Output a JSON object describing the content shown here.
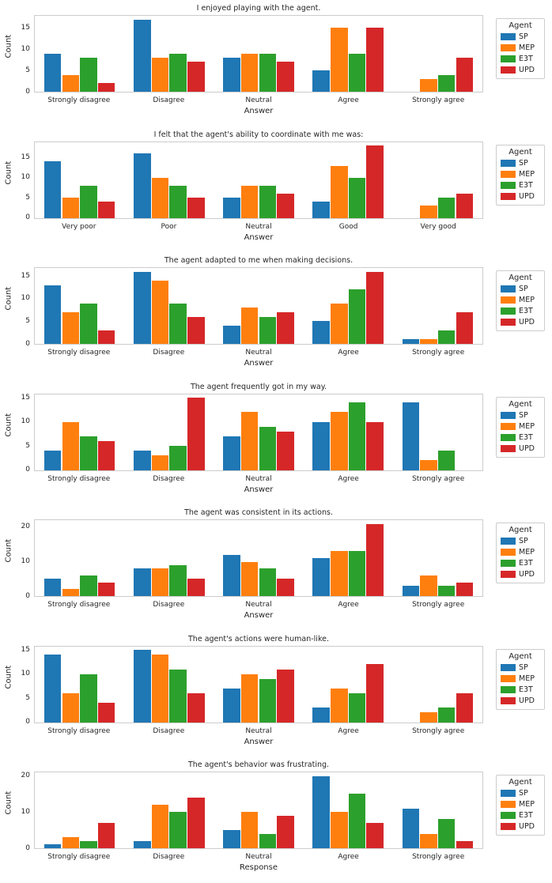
{
  "legend": {
    "title": "Agent",
    "entries": [
      {
        "label": "SP",
        "color": "#1f77b4"
      },
      {
        "label": "MEP",
        "color": "#ff7f0e"
      },
      {
        "label": "E3T",
        "color": "#2ca02c"
      },
      {
        "label": "UPD",
        "color": "#d62728"
      }
    ]
  },
  "chart_data": [
    {
      "type": "bar",
      "title": "I enjoyed playing with the agent.",
      "xlabel": "Answer",
      "ylabel": "Count",
      "categories": [
        "Strongly disagree",
        "Disagree",
        "Neutral",
        "Agree",
        "Strongly agree"
      ],
      "series": [
        {
          "name": "SP",
          "color": "#1f77b4",
          "values": [
            9,
            17,
            8,
            5,
            0
          ]
        },
        {
          "name": "MEP",
          "color": "#ff7f0e",
          "values": [
            4,
            8,
            9,
            15,
            3
          ]
        },
        {
          "name": "E3T",
          "color": "#2ca02c",
          "values": [
            8,
            9,
            9,
            9,
            4
          ]
        },
        {
          "name": "UPD",
          "color": "#d62728",
          "values": [
            2,
            7,
            7,
            15,
            8
          ]
        }
      ],
      "yticks": [
        0,
        5,
        10,
        15
      ],
      "ylim": [
        0,
        17.85
      ],
      "legend_position": "right",
      "grid": false
    },
    {
      "type": "bar",
      "title": "I felt that the agent's ability to coordinate with me was:",
      "xlabel": "Answer",
      "ylabel": "Count",
      "categories": [
        "Very poor",
        "Poor",
        "Neutral",
        "Good",
        "Very good"
      ],
      "series": [
        {
          "name": "SP",
          "color": "#1f77b4",
          "values": [
            14,
            16,
            5,
            4,
            0
          ]
        },
        {
          "name": "MEP",
          "color": "#ff7f0e",
          "values": [
            5,
            10,
            8,
            13,
            3
          ]
        },
        {
          "name": "E3T",
          "color": "#2ca02c",
          "values": [
            8,
            8,
            8,
            10,
            5
          ]
        },
        {
          "name": "UPD",
          "color": "#d62728",
          "values": [
            4,
            5,
            6,
            18,
            6
          ]
        }
      ],
      "yticks": [
        0,
        5,
        10,
        15
      ],
      "ylim": [
        0,
        18.9
      ],
      "legend_position": "right",
      "grid": false
    },
    {
      "type": "bar",
      "title": "The agent adapted to me when making decisions.",
      "xlabel": "Answer",
      "ylabel": "Count",
      "categories": [
        "Strongly disagree",
        "Disagree",
        "Neutral",
        "Agree",
        "Strongly agree"
      ],
      "series": [
        {
          "name": "SP",
          "color": "#1f77b4",
          "values": [
            13,
            16,
            4,
            5,
            1
          ]
        },
        {
          "name": "MEP",
          "color": "#ff7f0e",
          "values": [
            7,
            14,
            8,
            9,
            1
          ]
        },
        {
          "name": "E3T",
          "color": "#2ca02c",
          "values": [
            9,
            9,
            6,
            12,
            3
          ]
        },
        {
          "name": "UPD",
          "color": "#d62728",
          "values": [
            3,
            6,
            7,
            16,
            7
          ]
        }
      ],
      "yticks": [
        0,
        5,
        10,
        15
      ],
      "ylim": [
        0,
        16.8
      ],
      "legend_position": "right",
      "grid": false
    },
    {
      "type": "bar",
      "title": "The agent frequently got in my way.",
      "xlabel": "Answer",
      "ylabel": "Count",
      "categories": [
        "Strongly disagree",
        "Disagree",
        "Neutral",
        "Agree",
        "Strongly agree"
      ],
      "series": [
        {
          "name": "SP",
          "color": "#1f77b4",
          "values": [
            4,
            4,
            7,
            10,
            14
          ]
        },
        {
          "name": "MEP",
          "color": "#ff7f0e",
          "values": [
            10,
            3,
            12,
            12,
            2
          ]
        },
        {
          "name": "E3T",
          "color": "#2ca02c",
          "values": [
            7,
            5,
            9,
            14,
            4
          ]
        },
        {
          "name": "UPD",
          "color": "#d62728",
          "values": [
            6,
            15,
            8,
            10,
            0
          ]
        }
      ],
      "yticks": [
        0,
        5,
        10,
        15
      ],
      "ylim": [
        0,
        15.75
      ],
      "legend_position": "right",
      "grid": false
    },
    {
      "type": "bar",
      "title": "The agent was consistent in its actions.",
      "xlabel": "Answer",
      "ylabel": "Count",
      "categories": [
        "Strongly disagree",
        "Disagree",
        "Neutral",
        "Agree",
        "Strongly agree"
      ],
      "series": [
        {
          "name": "SP",
          "color": "#1f77b4",
          "values": [
            5,
            8,
            12,
            11,
            3
          ]
        },
        {
          "name": "MEP",
          "color": "#ff7f0e",
          "values": [
            2,
            8,
            10,
            13,
            6
          ]
        },
        {
          "name": "E3T",
          "color": "#2ca02c",
          "values": [
            6,
            9,
            8,
            13,
            3
          ]
        },
        {
          "name": "UPD",
          "color": "#d62728",
          "values": [
            4,
            5,
            5,
            21,
            4
          ]
        }
      ],
      "yticks": [
        0,
        10,
        20
      ],
      "ylim": [
        0,
        22.05
      ],
      "legend_position": "right",
      "grid": false
    },
    {
      "type": "bar",
      "title": "The agent's actions were human-like.",
      "xlabel": "Answer",
      "ylabel": "Count",
      "categories": [
        "Strongly disagree",
        "Disagree",
        "Neutral",
        "Agree",
        "Strongly agree"
      ],
      "series": [
        {
          "name": "SP",
          "color": "#1f77b4",
          "values": [
            14,
            15,
            7,
            3,
            0
          ]
        },
        {
          "name": "MEP",
          "color": "#ff7f0e",
          "values": [
            6,
            14,
            10,
            7,
            2
          ]
        },
        {
          "name": "E3T",
          "color": "#2ca02c",
          "values": [
            10,
            11,
            9,
            6,
            3
          ]
        },
        {
          "name": "UPD",
          "color": "#d62728",
          "values": [
            4,
            6,
            11,
            12,
            6
          ]
        }
      ],
      "yticks": [
        0,
        5,
        10,
        15
      ],
      "ylim": [
        0,
        15.75
      ],
      "legend_position": "right",
      "grid": false
    },
    {
      "type": "bar",
      "title": "The agent's behavior was frustrating.",
      "xlabel": "Response",
      "ylabel": "Count",
      "categories": [
        "Strongly disagree",
        "Disagree",
        "Neutral",
        "Agree",
        "Strongly agree"
      ],
      "series": [
        {
          "name": "SP",
          "color": "#1f77b4",
          "values": [
            1,
            2,
            5,
            20,
            11
          ]
        },
        {
          "name": "MEP",
          "color": "#ff7f0e",
          "values": [
            3,
            12,
            10,
            10,
            4
          ]
        },
        {
          "name": "E3T",
          "color": "#2ca02c",
          "values": [
            2,
            10,
            4,
            15,
            8
          ]
        },
        {
          "name": "UPD",
          "color": "#d62728",
          "values": [
            7,
            14,
            9,
            7,
            2
          ]
        }
      ],
      "yticks": [
        0,
        10,
        20
      ],
      "ylim": [
        0,
        21
      ],
      "legend_position": "right",
      "grid": false
    }
  ]
}
